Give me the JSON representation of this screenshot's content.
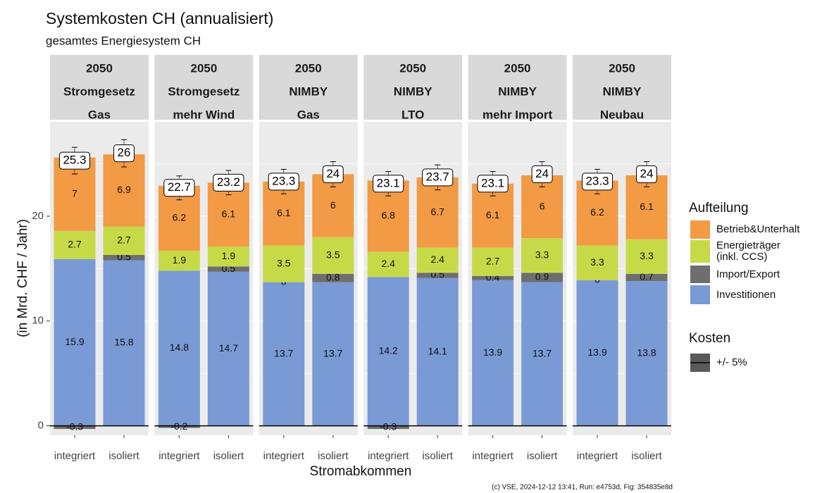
{
  "chart_data": {
    "type": "bar",
    "title": "Systemkosten CH (annualisiert)",
    "subtitle": "gesamtes Energiesystem CH",
    "x_label": "Stromabkommen",
    "y_label": "(in Mrd. CHF / Jahr)",
    "ylim": [
      -0.9,
      29
    ],
    "yticks": [
      0,
      10,
      20
    ],
    "minor_yticks": [
      5,
      15,
      25
    ],
    "grid": true,
    "legend_title": "Aufteilung",
    "series": [
      {
        "name": "Investitionen",
        "color": "#7a9ad6"
      },
      {
        "name": "Import/Export",
        "color": "#6e6e6e"
      },
      {
        "name": "Energieträger\n(inkl. CCS)",
        "color": "#c6da48"
      },
      {
        "name": "Betrieb&Unterhalt",
        "color": "#f39a45"
      }
    ],
    "error_legend_title": "Kosten",
    "error_legend_label": "+/- 5%",
    "caption": "(c) VSE, 2024-12-12 13:41, Run: e4753d, Fig: 354835e8d",
    "panels": [
      {
        "strip": [
          "2050",
          "Stromgesetz",
          "Gas"
        ],
        "categories": [
          "integriert",
          "isoliert"
        ],
        "values": [
          [
            15.9,
            15.8
          ],
          [
            -0.3,
            0.5
          ],
          [
            2.7,
            2.7
          ],
          [
            7,
            6.9
          ]
        ],
        "totals": [
          25.3,
          26
        ],
        "errors": [
          1.27,
          1.3
        ]
      },
      {
        "strip": [
          "2050",
          "Stromgesetz",
          "mehr Wind"
        ],
        "categories": [
          "integriert",
          "isoliert"
        ],
        "values": [
          [
            14.8,
            14.7
          ],
          [
            -0.2,
            0.5
          ],
          [
            1.9,
            1.9
          ],
          [
            6.2,
            6.1
          ]
        ],
        "totals": [
          22.7,
          23.2
        ],
        "errors": [
          1.14,
          1.16
        ]
      },
      {
        "strip": [
          "2050",
          "NIMBY",
          "Gas"
        ],
        "categories": [
          "integriert",
          "isoliert"
        ],
        "values": [
          [
            13.7,
            13.7
          ],
          [
            0,
            0.8
          ],
          [
            3.5,
            3.5
          ],
          [
            6.1,
            6
          ]
        ],
        "totals": [
          23.3,
          24
        ],
        "errors": [
          1.17,
          1.2
        ]
      },
      {
        "strip": [
          "2050",
          "NIMBY",
          "LTO"
        ],
        "categories": [
          "integriert",
          "isoliert"
        ],
        "values": [
          [
            14.2,
            14.1
          ],
          [
            -0.3,
            0.5
          ],
          [
            2.4,
            2.4
          ],
          [
            6.8,
            6.7
          ]
        ],
        "totals": [
          23.1,
          23.7
        ],
        "errors": [
          1.16,
          1.19
        ]
      },
      {
        "strip": [
          "2050",
          "NIMBY",
          "mehr Import"
        ],
        "categories": [
          "integriert",
          "isoliert"
        ],
        "values": [
          [
            13.9,
            13.7
          ],
          [
            0.4,
            0.9
          ],
          [
            2.7,
            3.3
          ],
          [
            6.1,
            6
          ]
        ],
        "totals": [
          23.1,
          24
        ],
        "errors": [
          1.16,
          1.2
        ]
      },
      {
        "strip": [
          "2050",
          "NIMBY",
          "Neubau"
        ],
        "categories": [
          "integriert",
          "isoliert"
        ],
        "values": [
          [
            13.9,
            13.8
          ],
          [
            0,
            0.7
          ],
          [
            3.3,
            3.3
          ],
          [
            6.2,
            6.1
          ]
        ],
        "totals": [
          23.3,
          24
        ],
        "errors": [
          1.17,
          1.2
        ]
      }
    ]
  }
}
